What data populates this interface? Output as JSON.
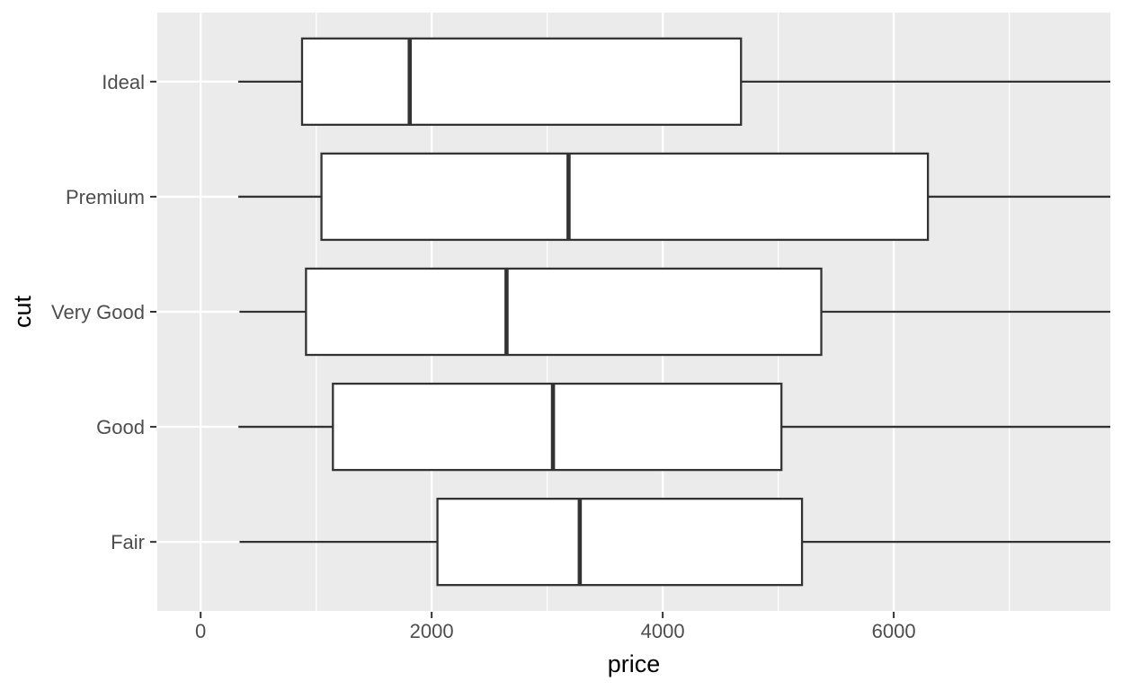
{
  "figure": {
    "background": "#ffffff"
  },
  "chart_data": {
    "type": "boxplot",
    "orientation": "horizontal",
    "title": "",
    "xlabel": "price",
    "ylabel": "cut",
    "x_domain": [
      -375,
      7875
    ],
    "x_ticks": [
      0,
      2000,
      4000,
      6000
    ],
    "x_tick_labels": [
      "0",
      "2000",
      "4000",
      "6000"
    ],
    "x_minor_ticks": [
      1000,
      3000,
      5000,
      7000
    ],
    "categories_top_to_bottom": [
      "Ideal",
      "Premium",
      "Very Good",
      "Good",
      "Fair"
    ],
    "series": [
      {
        "category": "Ideal",
        "whisker_low": 326,
        "q1": 878,
        "median": 1810,
        "q3": 4678,
        "whisker_high_clipped": true
      },
      {
        "category": "Premium",
        "whisker_low": 326,
        "q1": 1046,
        "median": 3185,
        "q3": 6296,
        "whisker_high_clipped": true
      },
      {
        "category": "Very Good",
        "whisker_low": 336,
        "q1": 912,
        "median": 2648,
        "q3": 5373,
        "whisker_high_clipped": true
      },
      {
        "category": "Good",
        "whisker_low": 327,
        "q1": 1145,
        "median": 3050,
        "q3": 5028,
        "whisker_high_clipped": true
      },
      {
        "category": "Fair",
        "whisker_low": 337,
        "q1": 2050,
        "median": 3282,
        "q3": 5206,
        "whisker_high_clipped": true
      }
    ],
    "grid": true,
    "legend": "none",
    "outliers_visible": false,
    "colors": {
      "panel_bg": "#EBEBEB",
      "grid": "#FFFFFF",
      "box_fill": "#FFFFFF",
      "line": "#333333",
      "tick_mark": "#333333",
      "tick_label": "#4D4D4D",
      "axis_title": "#000000"
    }
  }
}
